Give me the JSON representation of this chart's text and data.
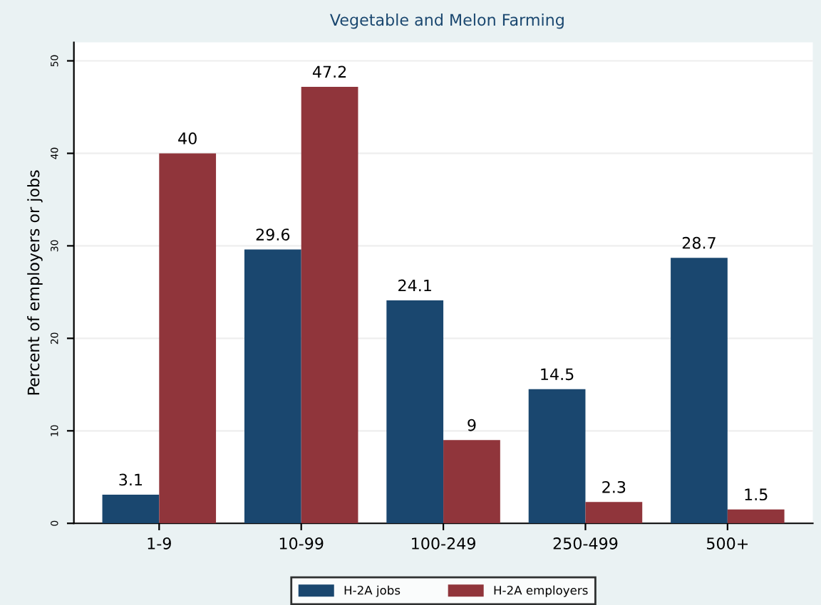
{
  "chart_data": {
    "type": "bar",
    "title": "Vegetable and Melon Farming",
    "ylabel": "Percent of employers or jobs",
    "categories": [
      "1-9",
      "10-99",
      "100-249",
      "250-499",
      "500+"
    ],
    "series": [
      {
        "name": "H-2A jobs",
        "color": "#1a476f",
        "values": [
          3.1,
          29.6,
          24.1,
          14.5,
          28.7
        ]
      },
      {
        "name": "H-2A employers",
        "color": "#90353b",
        "values": [
          40,
          47.2,
          9,
          2.3,
          1.5
        ]
      }
    ],
    "ylim": [
      0,
      52
    ],
    "yticks": [
      0,
      10,
      20,
      30,
      40,
      50
    ],
    "grid": "y",
    "legend": "bottom",
    "data_labels": true
  }
}
